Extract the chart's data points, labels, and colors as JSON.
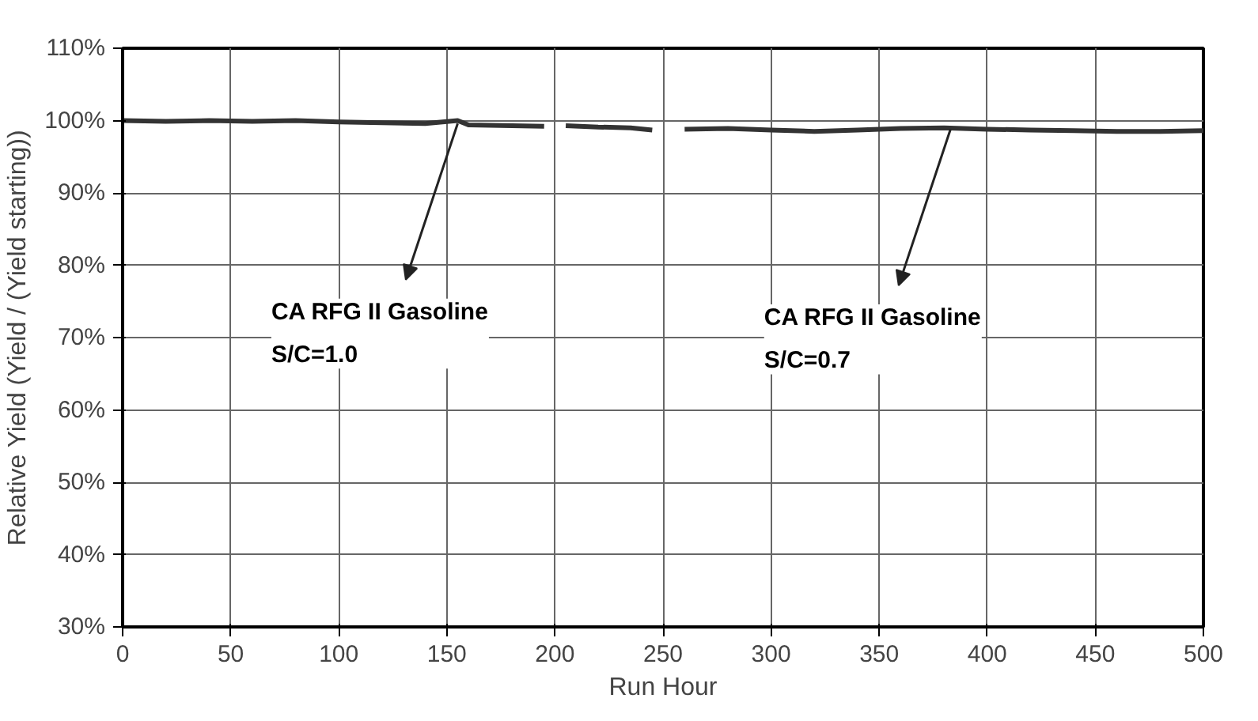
{
  "chart_data": {
    "type": "line",
    "xlabel": "Run Hour",
    "ylabel": "Relative Yield (Yield / (Yield starting))",
    "series": [
      {
        "color": "#333333",
        "x": [
          0,
          20,
          40,
          60,
          80,
          100,
          120,
          140,
          155,
          160,
          180,
          195,
          200,
          205,
          220,
          235,
          245,
          250,
          260,
          280,
          300,
          320,
          340,
          360,
          380,
          400,
          420,
          440,
          460,
          480,
          500
        ],
        "values": [
          100,
          99.9,
          100,
          99.9,
          100,
          99.8,
          99.7,
          99.6,
          100,
          99.4,
          99.3,
          99.2,
          null,
          99.3,
          99.1,
          99.0,
          98.7,
          null,
          98.8,
          98.9,
          98.7,
          98.5,
          98.7,
          98.9,
          99.0,
          98.8,
          98.7,
          98.6,
          98.5,
          98.5,
          98.6
        ]
      }
    ],
    "xlim": [
      0,
      500
    ],
    "xticks": [
      0,
      50,
      100,
      150,
      200,
      250,
      300,
      350,
      400,
      450,
      500
    ],
    "ylim": [
      30,
      110
    ],
    "yticks": [
      {
        "value": 30,
        "label": "30%"
      },
      {
        "value": 40,
        "label": "40%"
      },
      {
        "value": 50,
        "label": "50%"
      },
      {
        "value": 60,
        "label": "60%"
      },
      {
        "value": 70,
        "label": "70%"
      },
      {
        "value": 80,
        "label": "80%"
      },
      {
        "value": 90,
        "label": "90%"
      },
      {
        "value": 100,
        "label": "100%"
      },
      {
        "value": 110,
        "label": "110%"
      }
    ],
    "grid": true,
    "marker": "none",
    "line_style": "solid",
    "annotations": [
      {
        "text": "CA RFG II Gasoline\nS/C=1.0",
        "x": 155,
        "y": 99.6
      },
      {
        "text": "CA RFG II Gasoline\n S/C=0.7",
        "x": 383,
        "y": 98.8
      }
    ]
  }
}
